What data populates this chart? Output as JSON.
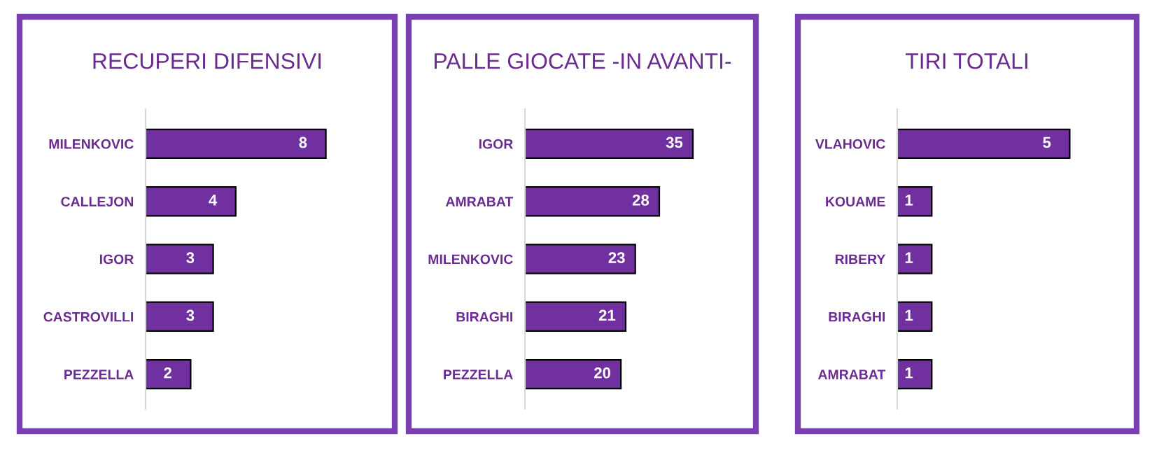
{
  "chart_data": [
    {
      "type": "bar",
      "orientation": "horizontal",
      "title": "RECUPERI DIFENSIVI",
      "categories": [
        "MILENKOVIC",
        "CALLEJON",
        "IGOR",
        "CASTROVILLI",
        "PEZZELLA"
      ],
      "values": [
        8,
        4,
        3,
        3,
        2
      ],
      "color": "#7030a0",
      "data_labels": true
    },
    {
      "type": "bar",
      "orientation": "horizontal",
      "title": "PALLE GIOCATE -IN AVANTI-",
      "categories": [
        "IGOR",
        "AMRABAT",
        "MILENKOVIC",
        "BIRAGHI",
        "PEZZELLA"
      ],
      "values": [
        35,
        28,
        23,
        21,
        20
      ],
      "color": "#7030a0",
      "data_labels": true
    },
    {
      "type": "bar",
      "orientation": "horizontal",
      "title": "TIRI TOTALI",
      "categories": [
        "VLAHOVIC",
        "KOUAME",
        "RIBERY",
        "BIRAGHI",
        "AMRABAT"
      ],
      "values": [
        5,
        1,
        1,
        1,
        1
      ],
      "color": "#7030a0",
      "data_labels": true
    }
  ]
}
